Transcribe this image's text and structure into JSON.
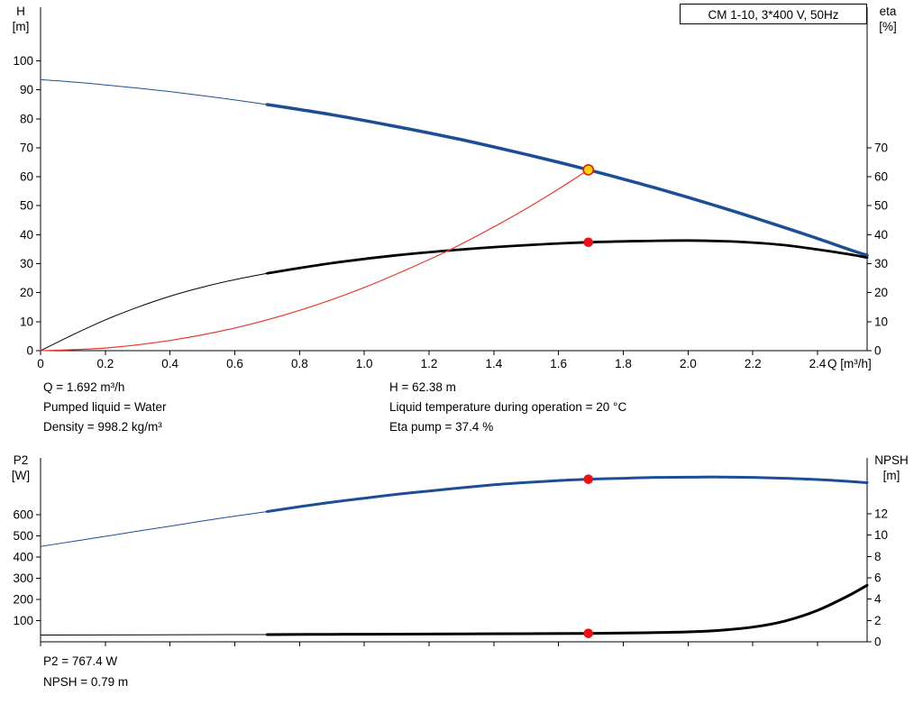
{
  "colors": {
    "blue": "#1c4e96",
    "black": "#000000",
    "red": "#e8392f",
    "marker_red": "#ee1111",
    "marker_yellow": "#ffd800",
    "axis": "#000000"
  },
  "info_top": {
    "rows": [
      {
        "left": "Q = 1.692 m³/h",
        "right": "H = 62.38 m"
      },
      {
        "left": "Pumped liquid = Water",
        "right": "Liquid temperature during operation = 20 °C"
      },
      {
        "left": "Density = 998.2 kg/m³",
        "right": "Eta pump = 37.4 %"
      }
    ]
  },
  "info_bottom": {
    "rows": [
      "P2 = 767.4 W",
      "NPSH = 0.79 m"
    ]
  },
  "chart_data": [
    {
      "id": "qh",
      "type": "line",
      "title": "CM 1-10, 3*400 V, 50Hz",
      "x": {
        "label": "Q [m³/h]",
        "min": 0,
        "max": 2.553,
        "ticks": [
          {
            "v": 0,
            "t": "0"
          },
          {
            "v": 0.2,
            "t": "0.2"
          },
          {
            "v": 0.4,
            "t": "0.4"
          },
          {
            "v": 0.6,
            "t": "0.6"
          },
          {
            "v": 0.8,
            "t": "0.8"
          },
          {
            "v": 1,
            "t": "1.0"
          },
          {
            "v": 1.2,
            "t": "1.2"
          },
          {
            "v": 1.4,
            "t": "1.4"
          },
          {
            "v": 1.6,
            "t": "1.6"
          },
          {
            "v": 1.8,
            "t": "1.8"
          },
          {
            "v": 2,
            "t": "2.0"
          },
          {
            "v": 2.2,
            "t": "2.2"
          },
          {
            "v": 2.4,
            "t": "2.4"
          }
        ]
      },
      "axes": {
        "left": {
          "label": "H",
          "unit": "[m]",
          "min": 0,
          "max": 118.5,
          "ticks": [
            0,
            10,
            20,
            30,
            40,
            50,
            60,
            70,
            80,
            90,
            100
          ]
        },
        "right": {
          "label": "eta",
          "unit": "[%]",
          "min": 0,
          "max": 118.5,
          "ticks": [
            0,
            10,
            20,
            30,
            40,
            50,
            60,
            70
          ]
        }
      },
      "series": [
        {
          "name": "pump-curve",
          "axis": "left",
          "color": "blue",
          "segments": [
            {
              "w": 1,
              "pts": [
                [
                  0,
                  93.5
                ],
                [
                  0.1,
                  92.7
                ],
                [
                  0.2,
                  91.7
                ],
                [
                  0.3,
                  90.6
                ],
                [
                  0.4,
                  89.4
                ],
                [
                  0.5,
                  88.0
                ],
                [
                  0.6,
                  86.5
                ],
                [
                  0.7,
                  84.9
                ]
              ]
            },
            {
              "w": 3.5,
              "pts": [
                [
                  0.7,
                  84.9
                ],
                [
                  0.8,
                  83.2
                ],
                [
                  0.9,
                  81.4
                ],
                [
                  1.0,
                  79.4
                ],
                [
                  1.1,
                  77.3
                ],
                [
                  1.2,
                  75.1
                ],
                [
                  1.3,
                  72.8
                ],
                [
                  1.4,
                  70.3
                ],
                [
                  1.5,
                  67.7
                ],
                [
                  1.6,
                  65.0
                ],
                [
                  1.692,
                  62.38
                ],
                [
                  1.8,
                  59.2
                ],
                [
                  1.9,
                  56.1
                ],
                [
                  2.0,
                  52.9
                ],
                [
                  2.1,
                  49.5
                ],
                [
                  2.2,
                  46.0
                ],
                [
                  2.3,
                  42.4
                ],
                [
                  2.4,
                  38.7
                ],
                [
                  2.5,
                  34.8
                ],
                [
                  2.553,
                  32.9
                ]
              ]
            }
          ]
        },
        {
          "name": "efficiency-curve",
          "axis": "right",
          "color": "black",
          "segments": [
            {
              "w": 1,
              "pts": [
                [
                  0,
                  0
                ],
                [
                  0.1,
                  5.5
                ],
                [
                  0.2,
                  10.6
                ],
                [
                  0.3,
                  15.0
                ],
                [
                  0.4,
                  18.8
                ],
                [
                  0.5,
                  21.9
                ],
                [
                  0.6,
                  24.5
                ],
                [
                  0.7,
                  26.7
                ]
              ]
            },
            {
              "w": 2.8,
              "pts": [
                [
                  0.7,
                  26.7
                ],
                [
                  0.9,
                  30.2
                ],
                [
                  1.1,
                  32.9
                ],
                [
                  1.3,
                  34.9
                ],
                [
                  1.5,
                  36.4
                ],
                [
                  1.692,
                  37.4
                ],
                [
                  1.9,
                  37.9
                ],
                [
                  2.0,
                  38.0
                ],
                [
                  2.1,
                  37.8
                ],
                [
                  2.2,
                  37.3
                ],
                [
                  2.3,
                  36.4
                ],
                [
                  2.4,
                  34.9
                ],
                [
                  2.5,
                  33.2
                ],
                [
                  2.553,
                  32.1
                ]
              ]
            }
          ]
        },
        {
          "name": "system-curve",
          "axis": "left",
          "color": "red",
          "segments": [
            {
              "w": 1.2,
              "pts": [
                [
                  0,
                  0
                ],
                [
                  0.2,
                  0.9
                ],
                [
                  0.4,
                  3.5
                ],
                [
                  0.6,
                  7.8
                ],
                [
                  0.8,
                  13.9
                ],
                [
                  1.0,
                  21.8
                ],
                [
                  1.2,
                  31.4
                ],
                [
                  1.3,
                  36.8
                ],
                [
                  1.4,
                  42.7
                ],
                [
                  1.5,
                  49.0
                ],
                [
                  1.6,
                  55.8
                ],
                [
                  1.692,
                  62.38
                ]
              ]
            }
          ]
        }
      ],
      "markers": [
        {
          "name": "duty-point",
          "axis": "left",
          "q": 1.692,
          "v": 62.38,
          "r": 5.5,
          "fill": "marker_yellow",
          "stroke": "marker_red"
        },
        {
          "name": "efficiency-point",
          "axis": "right",
          "q": 1.692,
          "v": 37.4,
          "r": 4.5,
          "fill": "marker_red",
          "stroke": "marker_red"
        }
      ]
    },
    {
      "id": "p2-npsh",
      "type": "line",
      "title": "",
      "x": {
        "label": "",
        "min": 0,
        "max": 2.553,
        "ticks": [
          {
            "v": 0
          },
          {
            "v": 0.2
          },
          {
            "v": 0.4
          },
          {
            "v": 0.6
          },
          {
            "v": 0.8
          },
          {
            "v": 1
          },
          {
            "v": 1.2
          },
          {
            "v": 1.4
          },
          {
            "v": 1.6
          },
          {
            "v": 1.8
          },
          {
            "v": 2
          },
          {
            "v": 2.2
          },
          {
            "v": 2.4
          }
        ]
      },
      "axes": {
        "left": {
          "label": "P2",
          "unit": "[W]",
          "min": 0,
          "max": 868,
          "ticks": [
            100,
            200,
            300,
            400,
            500,
            600
          ]
        },
        "right": {
          "label": "NPSH",
          "unit": "[m]",
          "min": 0,
          "max": 17.25,
          "ticks": [
            0,
            2,
            4,
            6,
            8,
            10,
            12
          ]
        }
      },
      "series": [
        {
          "name": "p2-curve",
          "axis": "left",
          "color": "blue",
          "segments": [
            {
              "w": 1,
              "pts": [
                [
                  0,
                  450
                ],
                [
                  0.1,
                  474
                ],
                [
                  0.2,
                  498
                ],
                [
                  0.3,
                  522
                ],
                [
                  0.4,
                  546
                ],
                [
                  0.5,
                  570
                ],
                [
                  0.6,
                  593
                ],
                [
                  0.7,
                  615
                ]
              ]
            },
            {
              "w": 3,
              "pts": [
                [
                  0.7,
                  615
                ],
                [
                  0.8,
                  638
                ],
                [
                  0.9,
                  659
                ],
                [
                  1.0,
                  678
                ],
                [
                  1.1,
                  696
                ],
                [
                  1.2,
                  712
                ],
                [
                  1.3,
                  727
                ],
                [
                  1.4,
                  741
                ],
                [
                  1.5,
                  752
                ],
                [
                  1.6,
                  761
                ],
                [
                  1.692,
                  767.4
                ],
                [
                  1.8,
                  772
                ],
                [
                  1.9,
                  776
                ],
                [
                  2.0,
                  777
                ],
                [
                  2.1,
                  778
                ],
                [
                  2.2,
                  776
                ],
                [
                  2.3,
                  772
                ],
                [
                  2.4,
                  766
                ],
                [
                  2.5,
                  757
                ],
                [
                  2.553,
                  751
                ]
              ]
            }
          ]
        },
        {
          "name": "npsh-curve",
          "axis": "right",
          "color": "black",
          "segments": [
            {
              "w": 1,
              "pts": [
                [
                  0,
                  0.63
                ],
                [
                  0.35,
                  0.66
                ],
                [
                  0.7,
                  0.68
                ]
              ]
            },
            {
              "w": 3,
              "pts": [
                [
                  0.7,
                  0.68
                ],
                [
                  0.9,
                  0.7
                ],
                [
                  1.1,
                  0.72
                ],
                [
                  1.3,
                  0.74
                ],
                [
                  1.5,
                  0.76
                ],
                [
                  1.692,
                  0.79
                ],
                [
                  1.8,
                  0.82
                ],
                [
                  1.9,
                  0.86
                ],
                [
                  2.0,
                  0.93
                ],
                [
                  2.1,
                  1.08
                ],
                [
                  2.2,
                  1.38
                ],
                [
                  2.3,
                  1.95
                ],
                [
                  2.4,
                  2.95
                ],
                [
                  2.5,
                  4.4
                ],
                [
                  2.553,
                  5.3
                ]
              ]
            }
          ]
        }
      ],
      "markers": [
        {
          "name": "p2-point",
          "axis": "left",
          "q": 1.692,
          "v": 767.4,
          "r": 4.5,
          "fill": "marker_red",
          "stroke": "marker_red"
        },
        {
          "name": "npsh-point",
          "axis": "right",
          "q": 1.692,
          "v": 0.79,
          "r": 4.5,
          "fill": "marker_red",
          "stroke": "marker_red"
        }
      ]
    }
  ]
}
